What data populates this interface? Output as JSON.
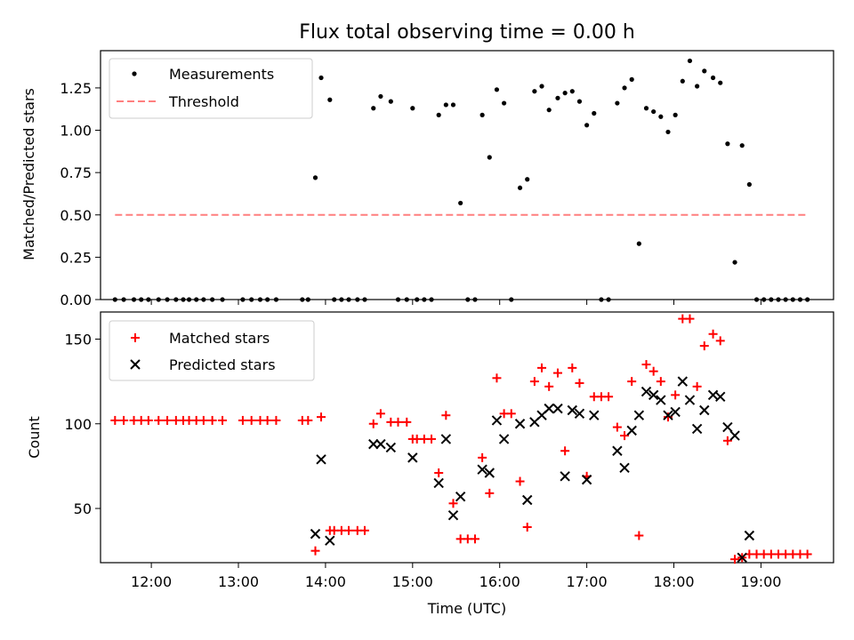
{
  "chart_data": [
    {
      "type": "scatter",
      "title": "Flux total observing time = 0.00 h",
      "xlabel": "",
      "ylabel": "Matched/Predicted stars",
      "xlim": [
        "11:25",
        "19:50"
      ],
      "ylim": [
        0,
        1.47
      ],
      "yticks": [
        "0.00",
        "0.25",
        "0.50",
        "0.75",
        "1.00",
        "1.25"
      ],
      "grid": false,
      "legend_position": "top-left",
      "colors": {
        "measurements": "#000000",
        "threshold": "#ff7f7f"
      },
      "series": [
        {
          "name": "Measurements",
          "marker": "dot",
          "points": [
            [
              "11:35",
              0.0
            ],
            [
              "11:41",
              0.0
            ],
            [
              "11:48",
              0.0
            ],
            [
              "11:53",
              0.0
            ],
            [
              "11:58",
              0.0
            ],
            [
              "12:05",
              0.0
            ],
            [
              "12:11",
              0.0
            ],
            [
              "12:17",
              0.0
            ],
            [
              "12:22",
              0.0
            ],
            [
              "12:26",
              0.0
            ],
            [
              "12:31",
              0.0
            ],
            [
              "12:36",
              0.0
            ],
            [
              "12:42",
              0.0
            ],
            [
              "12:49",
              0.0
            ],
            [
              "13:03",
              0.0
            ],
            [
              "13:09",
              0.0
            ],
            [
              "13:15",
              0.0
            ],
            [
              "13:20",
              0.0
            ],
            [
              "13:26",
              0.0
            ],
            [
              "13:44",
              0.0
            ],
            [
              "13:48",
              0.0
            ],
            [
              "13:53",
              0.72
            ],
            [
              "13:57",
              1.31
            ],
            [
              "14:03",
              1.18
            ],
            [
              "14:06",
              0.0
            ],
            [
              "14:11",
              0.0
            ],
            [
              "14:16",
              0.0
            ],
            [
              "14:22",
              0.0
            ],
            [
              "14:27",
              0.0
            ],
            [
              "14:33",
              1.13
            ],
            [
              "14:38",
              1.2
            ],
            [
              "14:45",
              1.17
            ],
            [
              "14:50",
              0.0
            ],
            [
              "14:56",
              0.0
            ],
            [
              "15:00",
              1.13
            ],
            [
              "15:03",
              0.0
            ],
            [
              "15:08",
              0.0
            ],
            [
              "15:13",
              0.0
            ],
            [
              "15:18",
              1.09
            ],
            [
              "15:23",
              1.15
            ],
            [
              "15:28",
              1.15
            ],
            [
              "15:33",
              0.57
            ],
            [
              "15:38",
              0.0
            ],
            [
              "15:43",
              0.0
            ],
            [
              "15:48",
              1.09
            ],
            [
              "15:53",
              0.84
            ],
            [
              "15:58",
              1.24
            ],
            [
              "16:03",
              1.16
            ],
            [
              "16:08",
              0.0
            ],
            [
              "16:14",
              0.66
            ],
            [
              "16:19",
              0.71
            ],
            [
              "16:24",
              1.23
            ],
            [
              "16:29",
              1.26
            ],
            [
              "16:34",
              1.12
            ],
            [
              "16:40",
              1.19
            ],
            [
              "16:45",
              1.22
            ],
            [
              "16:50",
              1.23
            ],
            [
              "16:55",
              1.17
            ],
            [
              "17:00",
              1.03
            ],
            [
              "17:05",
              1.1
            ],
            [
              "17:10",
              0.0
            ],
            [
              "17:15",
              0.0
            ],
            [
              "17:21",
              1.16
            ],
            [
              "17:26",
              1.25
            ],
            [
              "17:31",
              1.3
            ],
            [
              "17:36",
              0.33
            ],
            [
              "17:41",
              1.13
            ],
            [
              "17:46",
              1.11
            ],
            [
              "17:51",
              1.08
            ],
            [
              "17:56",
              0.99
            ],
            [
              "18:01",
              1.09
            ],
            [
              "18:06",
              1.29
            ],
            [
              "18:11",
              1.41
            ],
            [
              "18:16",
              1.26
            ],
            [
              "18:21",
              1.35
            ],
            [
              "18:27",
              1.31
            ],
            [
              "18:32",
              1.28
            ],
            [
              "18:37",
              0.92
            ],
            [
              "18:42",
              0.22
            ],
            [
              "18:47",
              0.91
            ],
            [
              "18:52",
              0.68
            ],
            [
              "18:57",
              0.0
            ],
            [
              "19:02",
              0.0
            ],
            [
              "19:07",
              0.0
            ],
            [
              "19:12",
              0.0
            ],
            [
              "19:17",
              0.0
            ],
            [
              "19:22",
              0.0
            ],
            [
              "19:27",
              0.0
            ],
            [
              "19:32",
              0.0
            ]
          ]
        },
        {
          "name": "Threshold",
          "style": "dashed-line",
          "points": [
            [
              "11:35",
              0.5
            ],
            [
              "19:32",
              0.5
            ]
          ]
        }
      ]
    },
    {
      "type": "scatter",
      "title": "",
      "xlabel": "Time (UTC)",
      "ylabel": "Count",
      "xlim": [
        "11:25",
        "19:50"
      ],
      "ylim": [
        18,
        166
      ],
      "xticks": [
        "12:00",
        "13:00",
        "14:00",
        "15:00",
        "16:00",
        "17:00",
        "18:00",
        "19:00"
      ],
      "yticks": [
        "50",
        "100",
        "150"
      ],
      "grid": false,
      "legend_position": "top-left",
      "colors": {
        "matched": "#ff0000",
        "predicted": "#000000"
      },
      "series": [
        {
          "name": "Matched stars",
          "marker": "plus",
          "points": [
            [
              "11:35",
              102
            ],
            [
              "11:41",
              102
            ],
            [
              "11:48",
              102
            ],
            [
              "11:53",
              102
            ],
            [
              "11:58",
              102
            ],
            [
              "12:05",
              102
            ],
            [
              "12:11",
              102
            ],
            [
              "12:17",
              102
            ],
            [
              "12:22",
              102
            ],
            [
              "12:26",
              102
            ],
            [
              "12:31",
              102
            ],
            [
              "12:36",
              102
            ],
            [
              "12:42",
              102
            ],
            [
              "12:49",
              102
            ],
            [
              "13:03",
              102
            ],
            [
              "13:09",
              102
            ],
            [
              "13:15",
              102
            ],
            [
              "13:20",
              102
            ],
            [
              "13:26",
              102
            ],
            [
              "13:44",
              102
            ],
            [
              "13:48",
              102
            ],
            [
              "13:53",
              25
            ],
            [
              "13:57",
              104
            ],
            [
              "14:03",
              37
            ],
            [
              "14:06",
              37
            ],
            [
              "14:11",
              37
            ],
            [
              "14:16",
              37
            ],
            [
              "14:22",
              37
            ],
            [
              "14:27",
              37
            ],
            [
              "14:33",
              100
            ],
            [
              "14:38",
              106
            ],
            [
              "14:45",
              101
            ],
            [
              "14:50",
              101
            ],
            [
              "14:56",
              101
            ],
            [
              "15:00",
              91
            ],
            [
              "15:03",
              91
            ],
            [
              "15:08",
              91
            ],
            [
              "15:13",
              91
            ],
            [
              "15:18",
              71
            ],
            [
              "15:23",
              105
            ],
            [
              "15:28",
              53
            ],
            [
              "15:33",
              32
            ],
            [
              "15:38",
              32
            ],
            [
              "15:43",
              32
            ],
            [
              "15:48",
              80
            ],
            [
              "15:53",
              59
            ],
            [
              "15:58",
              127
            ],
            [
              "16:03",
              106
            ],
            [
              "16:08",
              106
            ],
            [
              "16:14",
              66
            ],
            [
              "16:19",
              39
            ],
            [
              "16:24",
              125
            ],
            [
              "16:29",
              133
            ],
            [
              "16:34",
              122
            ],
            [
              "16:40",
              130
            ],
            [
              "16:45",
              84
            ],
            [
              "16:50",
              133
            ],
            [
              "16:55",
              124
            ],
            [
              "17:00",
              69
            ],
            [
              "17:05",
              116
            ],
            [
              "17:10",
              116
            ],
            [
              "17:15",
              116
            ],
            [
              "17:21",
              98
            ],
            [
              "17:26",
              93
            ],
            [
              "17:31",
              125
            ],
            [
              "17:36",
              34
            ],
            [
              "17:41",
              135
            ],
            [
              "17:46",
              131
            ],
            [
              "17:51",
              125
            ],
            [
              "17:56",
              104
            ],
            [
              "18:01",
              117
            ],
            [
              "18:06",
              162
            ],
            [
              "18:11",
              162
            ],
            [
              "18:16",
              122
            ],
            [
              "18:21",
              146
            ],
            [
              "18:27",
              153
            ],
            [
              "18:32",
              149
            ],
            [
              "18:37",
              90
            ],
            [
              "18:42",
              20
            ],
            [
              "18:47",
              21
            ],
            [
              "18:52",
              23
            ],
            [
              "18:57",
              23
            ],
            [
              "19:02",
              23
            ],
            [
              "19:07",
              23
            ],
            [
              "19:12",
              23
            ],
            [
              "19:17",
              23
            ],
            [
              "19:22",
              23
            ],
            [
              "19:27",
              23
            ],
            [
              "19:32",
              23
            ]
          ]
        },
        {
          "name": "Predicted stars",
          "marker": "x",
          "points": [
            [
              "13:53",
              35
            ],
            [
              "13:57",
              79
            ],
            [
              "14:03",
              31
            ],
            [
              "14:33",
              88
            ],
            [
              "14:38",
              88
            ],
            [
              "14:45",
              86
            ],
            [
              "15:00",
              80
            ],
            [
              "15:18",
              65
            ],
            [
              "15:23",
              91
            ],
            [
              "15:28",
              46
            ],
            [
              "15:33",
              57
            ],
            [
              "15:48",
              73
            ],
            [
              "15:53",
              71
            ],
            [
              "15:58",
              102
            ],
            [
              "16:03",
              91
            ],
            [
              "16:14",
              100
            ],
            [
              "16:19",
              55
            ],
            [
              "16:24",
              101
            ],
            [
              "16:29",
              105
            ],
            [
              "16:34",
              109
            ],
            [
              "16:40",
              109
            ],
            [
              "16:45",
              69
            ],
            [
              "16:50",
              108
            ],
            [
              "16:55",
              106
            ],
            [
              "17:00",
              67
            ],
            [
              "17:05",
              105
            ],
            [
              "17:21",
              84
            ],
            [
              "17:26",
              74
            ],
            [
              "17:31",
              96
            ],
            [
              "17:36",
              105
            ],
            [
              "17:41",
              119
            ],
            [
              "17:46",
              117
            ],
            [
              "17:51",
              114
            ],
            [
              "17:56",
              105
            ],
            [
              "18:01",
              107
            ],
            [
              "18:06",
              125
            ],
            [
              "18:11",
              114
            ],
            [
              "18:16",
              97
            ],
            [
              "18:21",
              108
            ],
            [
              "18:27",
              117
            ],
            [
              "18:32",
              116
            ],
            [
              "18:37",
              98
            ],
            [
              "18:42",
              93
            ],
            [
              "18:47",
              21
            ],
            [
              "18:52",
              34
            ]
          ]
        }
      ]
    }
  ]
}
